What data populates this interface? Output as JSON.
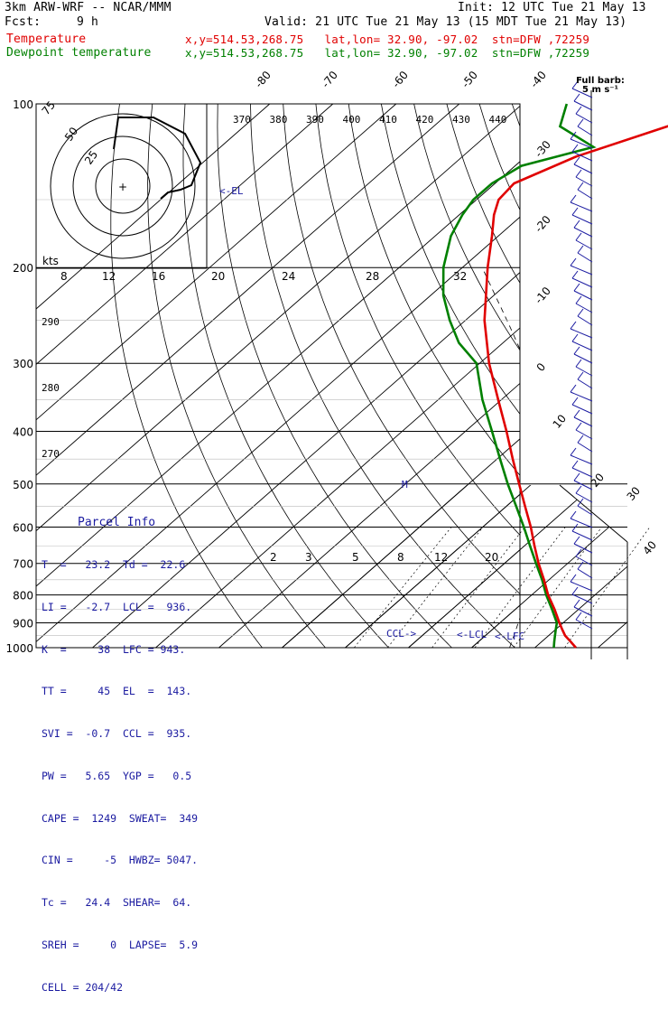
{
  "header": {
    "model": "3km ARW-WRF -- NCAR/MMM",
    "init": "Init: 12 UTC Tue 21 May 13",
    "fcst_label": "Fcst:",
    "fcst_value": "9 h",
    "valid": "Valid: 21 UTC Tue 21 May 13 (15 MDT Tue 21 May 13)",
    "temp_line": "Temperature",
    "temp_info": "x,y=514.53,268.75   lat,lon= 32.90, -97.02  stn=DFW ,72259",
    "dew_line": "Dewpoint temperature",
    "dew_info": "x,y=514.53,268.75   lat,lon= 32.90, -97.02  stn=DFW ,72259"
  },
  "wind_legend": {
    "line1": "Full barb:",
    "line2": "5 m s⁻¹"
  },
  "hodograph": {
    "units": "kts",
    "ring_labels": [
      "75",
      "50",
      "25"
    ],
    "center_mark": "+"
  },
  "parcel_info": {
    "title": "Parcel Info",
    "rows": [
      "T  =   23.2  Td =  22.6",
      "LI =   -2.7  LCL =  936.",
      "K  =     38  LFC = 943.",
      "TT =     45  EL  =  143.",
      "SVI =  -0.7  CCL =  935.",
      "PW =   5.65  YGP =   0.5",
      "CAPE =  1249  SWEAT=  349",
      "CIN =     -5  HWBZ= 5047.",
      "Tc =   24.4  SHEAR=  64.",
      "SREH =     0  LAPSE=  5.9",
      "CELL = 204/42"
    ]
  },
  "chart_data": {
    "type": "skew-t",
    "pressure_levels": [
      100,
      200,
      300,
      400,
      500,
      600,
      700,
      800,
      900,
      1000
    ],
    "isotherm_labels": [
      -80,
      -70,
      -60,
      -50,
      -40,
      -30,
      -20,
      -10,
      0,
      10,
      20,
      30,
      40
    ],
    "theta_labels_top": [
      370,
      380,
      390,
      400,
      410,
      420,
      430,
      440
    ],
    "theta_labels_left": [
      290,
      280,
      270
    ],
    "mixing_ratio_labels_top": [
      8,
      12,
      16,
      20,
      24,
      28,
      32
    ],
    "mixing_ratio_labels_bottom": [
      2,
      3,
      5,
      8,
      12,
      20
    ],
    "temperature": {
      "name": "Temperature",
      "color": "#e00000",
      "points": [
        [
          1000,
          26.5
        ],
        [
          975,
          24.6
        ],
        [
          950,
          22.6
        ],
        [
          925,
          21.0
        ],
        [
          900,
          19.4
        ],
        [
          850,
          16.2
        ],
        [
          800,
          12.6
        ],
        [
          750,
          9.2
        ],
        [
          700,
          5.4
        ],
        [
          650,
          1.6
        ],
        [
          600,
          -2.4
        ],
        [
          550,
          -7.0
        ],
        [
          500,
          -12.0
        ],
        [
          450,
          -17.5
        ],
        [
          400,
          -23.5
        ],
        [
          350,
          -30.5
        ],
        [
          300,
          -38.5
        ],
        [
          250,
          -47.0
        ],
        [
          200,
          -56.0
        ],
        [
          175,
          -61.0
        ],
        [
          160,
          -64.5
        ],
        [
          150,
          -66.5
        ],
        [
          140,
          -67.0
        ],
        [
          125,
          -62.0
        ],
        [
          110,
          -53.0
        ],
        [
          103,
          -48.0
        ],
        [
          100,
          -47.0
        ]
      ]
    },
    "dewpoint": {
      "name": "Dewpoint temperature",
      "color": "#008000",
      "points": [
        [
          1000,
          23.0
        ],
        [
          975,
          22.0
        ],
        [
          950,
          21.0
        ],
        [
          925,
          20.0
        ],
        [
          900,
          19.0
        ],
        [
          850,
          15.8
        ],
        [
          800,
          12.3
        ],
        [
          750,
          8.9
        ],
        [
          700,
          5.0
        ],
        [
          650,
          0.9
        ],
        [
          600,
          -3.5
        ],
        [
          550,
          -8.4
        ],
        [
          500,
          -13.8
        ],
        [
          450,
          -19.5
        ],
        [
          400,
          -25.8
        ],
        [
          350,
          -33.0
        ],
        [
          300,
          -40.5
        ],
        [
          275,
          -47.0
        ],
        [
          250,
          -52.5
        ],
        [
          225,
          -58.0
        ],
        [
          200,
          -63.0
        ],
        [
          175,
          -67.5
        ],
        [
          160,
          -69.5
        ],
        [
          150,
          -70.5
        ],
        [
          140,
          -70.5
        ],
        [
          130,
          -69.0
        ],
        [
          120,
          -61.0
        ],
        [
          110,
          -70.0
        ],
        [
          100,
          -73.0
        ]
      ]
    },
    "annotations": [
      "EL",
      "LCL",
      "LFC",
      "CCL",
      "M"
    ]
  }
}
